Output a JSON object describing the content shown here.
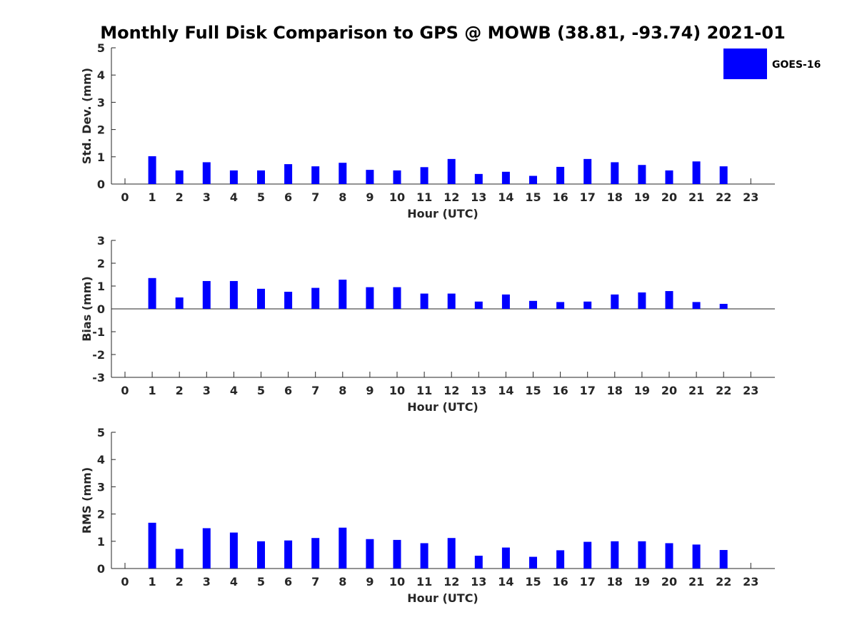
{
  "title": "Monthly Full Disk Comparison to GPS @ MOWB (38.81, -93.74) 2021-01",
  "legend": {
    "label": "GOES-16",
    "color": "#0000ff",
    "placement": "top-right"
  },
  "chart_data": [
    {
      "type": "bar",
      "ylabel": "Std. Dev. (mm)",
      "xlabel": "Hour (UTC)",
      "ylim": [
        0,
        5
      ],
      "yticks": [
        "0",
        "1",
        "2",
        "3",
        "4",
        "5"
      ],
      "categories": [
        "0",
        "1",
        "2",
        "3",
        "4",
        "5",
        "6",
        "7",
        "8",
        "9",
        "10",
        "11",
        "12",
        "13",
        "14",
        "15",
        "16",
        "17",
        "18",
        "19",
        "20",
        "21",
        "22",
        "23"
      ],
      "series": [
        {
          "name": "GOES-16",
          "values": [
            null,
            1.02,
            0.5,
            0.8,
            0.5,
            0.5,
            0.73,
            0.65,
            0.78,
            0.52,
            0.5,
            0.62,
            0.92,
            0.37,
            0.45,
            0.3,
            0.63,
            0.92,
            0.8,
            0.7,
            0.5,
            0.83,
            0.65,
            null
          ]
        }
      ]
    },
    {
      "type": "bar",
      "ylabel": "Bias (mm)",
      "xlabel": "Hour (UTC)",
      "ylim": [
        -3,
        3
      ],
      "yticks": [
        "-3",
        "-2",
        "-1",
        "0",
        "1",
        "2",
        "3"
      ],
      "categories": [
        "0",
        "1",
        "2",
        "3",
        "4",
        "5",
        "6",
        "7",
        "8",
        "9",
        "10",
        "11",
        "12",
        "13",
        "14",
        "15",
        "16",
        "17",
        "18",
        "19",
        "20",
        "21",
        "22",
        "23"
      ],
      "series": [
        {
          "name": "GOES-16",
          "values": [
            null,
            1.35,
            0.5,
            1.22,
            1.22,
            0.88,
            0.75,
            0.92,
            1.28,
            0.95,
            0.95,
            0.67,
            0.67,
            0.32,
            0.63,
            0.35,
            0.3,
            0.32,
            0.63,
            0.72,
            0.78,
            0.3,
            0.22,
            null
          ]
        }
      ]
    },
    {
      "type": "bar",
      "ylabel": "RMS (mm)",
      "xlabel": "Hour (UTC)",
      "ylim": [
        0,
        5
      ],
      "yticks": [
        "0",
        "1",
        "2",
        "3",
        "4",
        "5"
      ],
      "categories": [
        "0",
        "1",
        "2",
        "3",
        "4",
        "5",
        "6",
        "7",
        "8",
        "9",
        "10",
        "11",
        "12",
        "13",
        "14",
        "15",
        "16",
        "17",
        "18",
        "19",
        "20",
        "21",
        "22",
        "23"
      ],
      "series": [
        {
          "name": "GOES-16",
          "values": [
            null,
            1.68,
            0.72,
            1.48,
            1.32,
            1.0,
            1.03,
            1.12,
            1.5,
            1.08,
            1.05,
            0.93,
            1.12,
            0.47,
            0.77,
            0.43,
            0.67,
            0.98,
            1.0,
            1.0,
            0.93,
            0.88,
            0.68,
            null
          ]
        }
      ]
    }
  ]
}
